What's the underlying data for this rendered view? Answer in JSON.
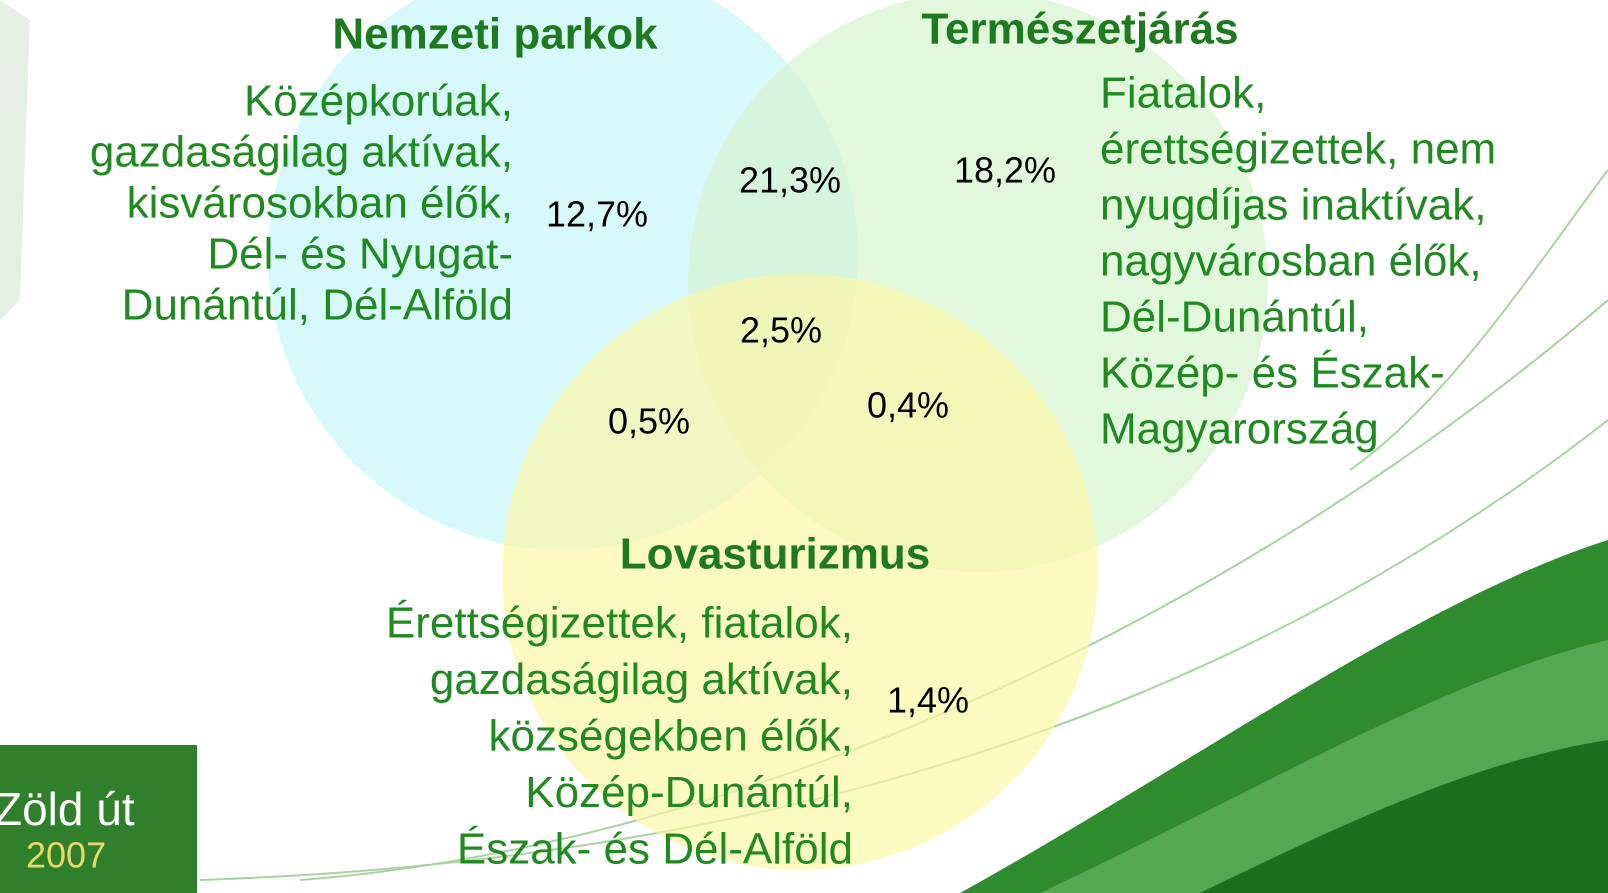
{
  "sets": [
    {
      "title": "Nemzeti parkok",
      "description": [
        "Középkorúak,",
        "gazdaságilag aktívak,",
        "kisvárosokban élők,",
        "Dél- és Nyugat-",
        "Dunántúl, Dél-Alföld"
      ]
    },
    {
      "title": "Természetjárás",
      "description": [
        "Fiatalok,",
        "érettségizettek, nem",
        "nyugdíjas inaktívak,",
        "nagyvárosban élők,",
        "Dél-Dunántúl,",
        "Közép- és Észak-",
        "Magyarország"
      ]
    },
    {
      "title": "Lovasturizmus",
      "description": [
        "Érettségizettek, fiatalok,",
        "gazdaságilag aktívak,",
        "községekben élők,",
        "Közép-Dunántúl,",
        "Észak- és Dél-Alföld"
      ]
    }
  ],
  "regions": {
    "nemzeti_only": "12,7%",
    "nemzeti_termeszet": "21,3%",
    "termeszet_only": "18,2%",
    "all_three": "2,5%",
    "nemzeti_lovas": "0,5%",
    "termeszet_lovas": "0,4%",
    "lovas_only": "1,4%"
  },
  "logo": {
    "name": "Zöld út",
    "year": "2007"
  }
}
